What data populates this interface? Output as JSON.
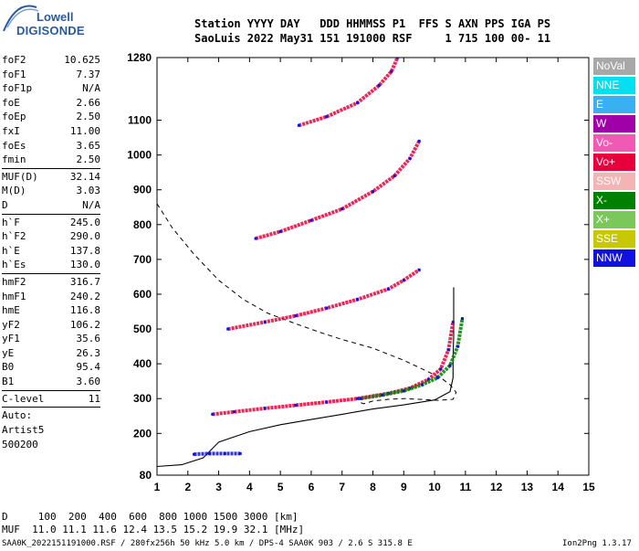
{
  "logo": {
    "line1": "Lowell",
    "line2": "DIGISONDE"
  },
  "header": {
    "line1": "Station YYYY DAY   DDD HHMMSS P1  FFS S AXN PPS IGA PS",
    "line2": "SaoLuis 2022 May31 151 191000 RSF     1 715 100 00- 11"
  },
  "params": {
    "group1": [
      {
        "k": "foF2",
        "v": "10.625"
      },
      {
        "k": "foF1",
        "v": "7.37"
      },
      {
        "k": "foF1p",
        "v": "N/A"
      },
      {
        "k": "foE",
        "v": "2.66"
      },
      {
        "k": "foEp",
        "v": "2.50"
      },
      {
        "k": "fxI",
        "v": "11.00"
      },
      {
        "k": "foEs",
        "v": "3.65"
      },
      {
        "k": "fmin",
        "v": "2.50"
      }
    ],
    "group2": [
      {
        "k": "MUF(D)",
        "v": "32.14"
      },
      {
        "k": "M(D)",
        "v": "3.03"
      },
      {
        "k": "D",
        "v": "N/A"
      }
    ],
    "group3": [
      {
        "k": "h`F",
        "v": "245.0"
      },
      {
        "k": "h`F2",
        "v": "290.0"
      },
      {
        "k": "h`E",
        "v": "137.8"
      },
      {
        "k": "h`Es",
        "v": "130.0"
      }
    ],
    "group4": [
      {
        "k": "hmF2",
        "v": "316.7"
      },
      {
        "k": "hmF1",
        "v": "240.2"
      },
      {
        "k": "hmE",
        "v": "116.8"
      },
      {
        "k": "yF2",
        "v": "106.2"
      },
      {
        "k": "yF1",
        "v": "35.6"
      },
      {
        "k": "yE",
        "v": "26.3"
      },
      {
        "k": "B0",
        "v": "95.4"
      },
      {
        "k": "B1",
        "v": "3.60"
      }
    ],
    "group5": [
      {
        "k": "C-level",
        "v": "11"
      }
    ],
    "auto": [
      "Auto:",
      "Artist5",
      "500200"
    ]
  },
  "bottom": {
    "dist_line": "D     100  200  400  600  800 1000 1500 3000 [km]",
    "muf_line": "MUF  11.0 11.1 11.6 12.4 13.5 15.2 19.9 32.1 [MHz]",
    "footer": "SAA0K_2022151191000.RSF / 280fx256h 50 kHz 5.0 km / DPS-4 SAA0K 903 / 2.6 S 315.8 E",
    "version": "Ion2Png 1.3.17"
  },
  "legend": [
    {
      "label": "NoVal",
      "color": "#a8a8a8"
    },
    {
      "label": "NNE",
      "color": "#00e0f0"
    },
    {
      "label": "E",
      "color": "#3ab0f0"
    },
    {
      "label": "W",
      "color": "#a000a8"
    },
    {
      "label": "Vo-",
      "color": "#f05ab4"
    },
    {
      "label": "Vo+",
      "color": "#e8003c"
    },
    {
      "label": "SSW",
      "color": "#f4b4b4"
    },
    {
      "label": "X-",
      "color": "#008000"
    },
    {
      "label": "X+",
      "color": "#7ac85a"
    },
    {
      "label": "SSE",
      "color": "#c8c800"
    },
    {
      "label": "NNW",
      "color": "#1010e0"
    }
  ],
  "chart_data": {
    "type": "scatter",
    "xlabel": "",
    "ylabel": "",
    "xlim": [
      1,
      15
    ],
    "ylim": [
      80,
      1280
    ],
    "x_ticks": [
      1,
      2,
      3,
      4,
      5,
      6,
      7,
      8,
      9,
      10,
      11,
      12,
      13,
      14,
      15
    ],
    "y_ticks": [
      80,
      200,
      300,
      400,
      500,
      600,
      700,
      800,
      900,
      1000,
      1100,
      1280
    ],
    "y_tick_labels": [
      "80",
      "200",
      "300",
      "400",
      "500",
      "600",
      "700",
      "800",
      "900",
      "1000",
      "1100",
      "1280"
    ],
    "traces": [
      {
        "name": "F2 O-trace",
        "color": "#e8003c",
        "points": [
          [
            2.8,
            255
          ],
          [
            3.5,
            262
          ],
          [
            4.5,
            272
          ],
          [
            5.5,
            281
          ],
          [
            6.5,
            290
          ],
          [
            7.5,
            300
          ],
          [
            8.5,
            315
          ],
          [
            9.2,
            330
          ],
          [
            9.8,
            355
          ],
          [
            10.2,
            385
          ],
          [
            10.45,
            440
          ],
          [
            10.6,
            520
          ]
        ]
      },
      {
        "name": "F2 X-trace",
        "color": "#008000",
        "points": [
          [
            7.6,
            300
          ],
          [
            8.3,
            310
          ],
          [
            9.0,
            322
          ],
          [
            9.6,
            340
          ],
          [
            10.1,
            360
          ],
          [
            10.5,
            395
          ],
          [
            10.75,
            450
          ],
          [
            10.9,
            530
          ]
        ]
      },
      {
        "name": "F2 2nd hop",
        "color": "#e8003c",
        "points": [
          [
            3.3,
            500
          ],
          [
            4.5,
            520
          ],
          [
            5.5,
            538
          ],
          [
            6.5,
            560
          ],
          [
            7.5,
            585
          ],
          [
            8.5,
            615
          ],
          [
            9.0,
            640
          ],
          [
            9.5,
            670
          ]
        ]
      },
      {
        "name": "F2 3rd hop",
        "color": "#e8003c",
        "points": [
          [
            4.2,
            760
          ],
          [
            5.0,
            780
          ],
          [
            6.0,
            812
          ],
          [
            7.0,
            845
          ],
          [
            8.0,
            895
          ],
          [
            8.7,
            940
          ],
          [
            9.2,
            990
          ],
          [
            9.5,
            1040
          ]
        ]
      },
      {
        "name": "F2 4th hop",
        "color": "#e8003c",
        "points": [
          [
            5.6,
            1085
          ],
          [
            6.5,
            1110
          ],
          [
            7.5,
            1150
          ],
          [
            8.2,
            1200
          ],
          [
            8.6,
            1240
          ],
          [
            8.8,
            1280
          ]
        ]
      },
      {
        "name": "Es trace",
        "color": "#1010e0",
        "points": [
          [
            2.2,
            140
          ],
          [
            2.7,
            142
          ],
          [
            3.2,
            142
          ],
          [
            3.7,
            142
          ]
        ]
      }
    ],
    "profile": [
      [
        1,
        105
      ],
      [
        1.8,
        110
      ],
      [
        2.5,
        130
      ],
      [
        3.0,
        175
      ],
      [
        4.0,
        205
      ],
      [
        5.0,
        225
      ],
      [
        6.0,
        240
      ],
      [
        7.0,
        255
      ],
      [
        8.0,
        270
      ],
      [
        9.0,
        282
      ],
      [
        10.0,
        296
      ],
      [
        10.5,
        320
      ],
      [
        10.6,
        360
      ],
      [
        10.6,
        420
      ],
      [
        10.62,
        480
      ],
      [
        10.62,
        620
      ]
    ],
    "muf_curve": [
      [
        1,
        860
      ],
      [
        1.5,
        790
      ],
      [
        2.2,
        715
      ],
      [
        3.0,
        640
      ],
      [
        3.8,
        585
      ],
      [
        4.6,
        545
      ],
      [
        5.5,
        515
      ],
      [
        6.3,
        490
      ],
      [
        7.0,
        470
      ],
      [
        8.0,
        445
      ],
      [
        9.0,
        410
      ],
      [
        9.6,
        385
      ],
      [
        10.2,
        360
      ],
      [
        10.5,
        340
      ],
      [
        10.7,
        318
      ],
      [
        10.6,
        298
      ],
      [
        10.1,
        295
      ],
      [
        9.5,
        298
      ],
      [
        9.0,
        300
      ],
      [
        8.5,
        298
      ],
      [
        8.0,
        293
      ],
      [
        7.7,
        285
      ],
      [
        7.5,
        292
      ]
    ]
  }
}
